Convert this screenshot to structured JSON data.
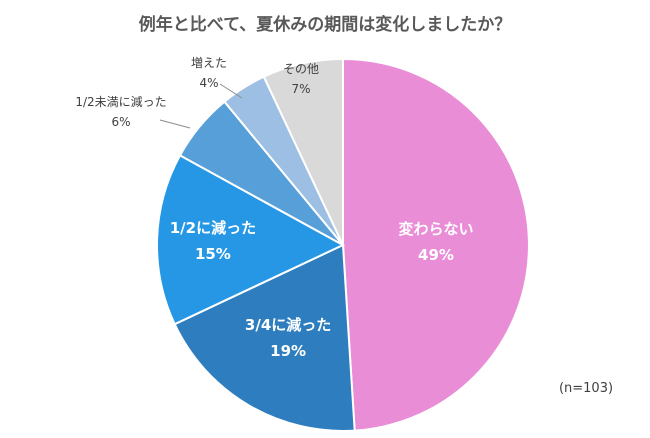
{
  "chart_data": {
    "type": "pie",
    "title": "例年と比べて、夏休みの期間は変化しましたか？",
    "note": "(n=103)",
    "slices": [
      {
        "label": "変わらない",
        "value_label": "49%",
        "value": 49,
        "color": "#E98DD6"
      },
      {
        "label": "3/4に減った",
        "value_label": "19%",
        "value": 19,
        "color": "#2E7EBF"
      },
      {
        "label": "1/2に減った",
        "value_label": "15%",
        "value": 15,
        "color": "#2597E4"
      },
      {
        "label": "1/2未満に減った",
        "value_label": "6%",
        "value": 6,
        "color": "#579FD8"
      },
      {
        "label": "増えた",
        "value_label": "4%",
        "value": 4,
        "color": "#9DBFE3"
      },
      {
        "label": "その他",
        "value_label": "7%",
        "value": 7,
        "color": "#D9D9D9"
      }
    ]
  }
}
